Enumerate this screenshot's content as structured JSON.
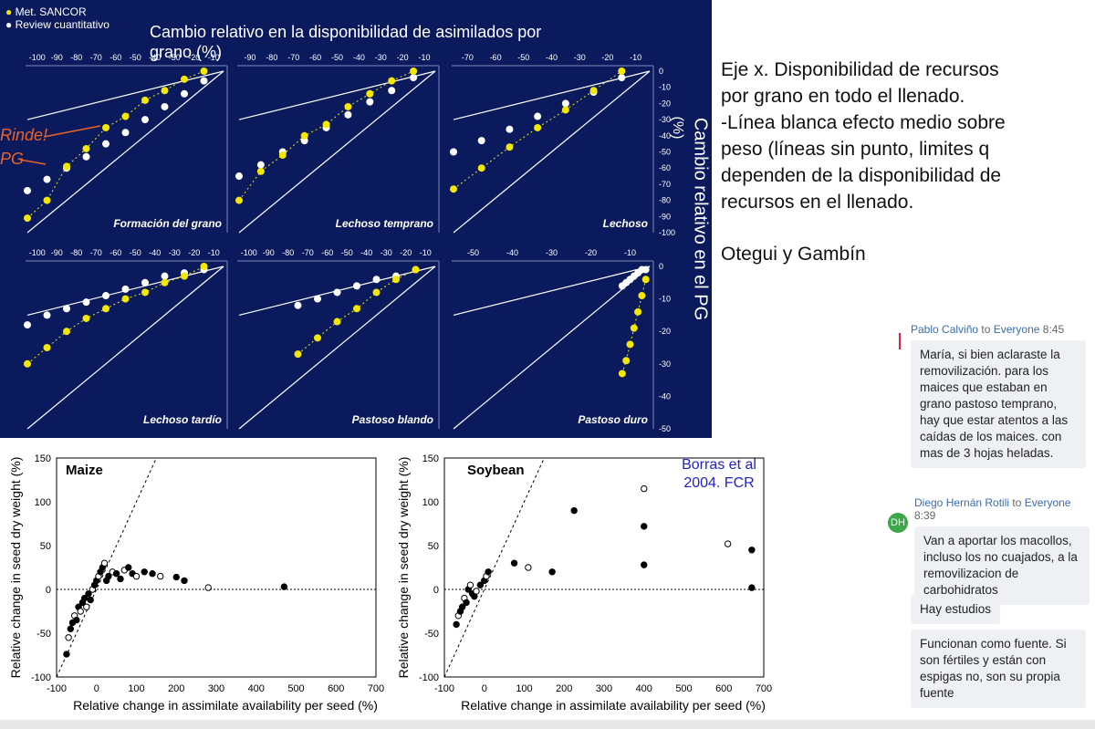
{
  "slide": {
    "legend": [
      "Met. SANCOR",
      "Review cuantitativo"
    ],
    "title": "Cambio relativo en la disponibilidad de asimilados por grano (%)",
    "right_axis": "Cambio relativo en el PG",
    "right_axis_unit": "(%)",
    "annotation_rinde": "Rinde!",
    "annotation_pg": "PG",
    "colors": {
      "background": "#0a1a5c",
      "sancor": "#f5e800",
      "review": "#ffffff",
      "annotation": "#e8642a"
    },
    "stage_labels": [
      "Formación del grano",
      "Lechoso temprano",
      "Lechoso",
      "Lechoso tardío",
      "Pastoso blando",
      "Pastoso duro"
    ],
    "top_x_ticks": [
      [
        "-100",
        "-90",
        "-80",
        "-70",
        "-60",
        "-50",
        "-40",
        "-30",
        "-20",
        "-10"
      ],
      [
        "-90",
        "-80",
        "-70",
        "-60",
        "-50",
        "-40",
        "-30",
        "-20",
        "-10"
      ],
      [
        "-70",
        "-60",
        "-50",
        "-40",
        "-30",
        "-20",
        "-10"
      ]
    ],
    "top_y_ticks": [
      "0",
      "-10",
      "-20",
      "-30",
      "-40",
      "-50",
      "-60",
      "-70",
      "-80",
      "-90",
      "-100"
    ],
    "bot_x_ticks": [
      [
        "-100",
        "-90",
        "-80",
        "-70",
        "-60",
        "-50",
        "-40",
        "-30",
        "-20",
        "-10"
      ],
      [
        "-100",
        "-90",
        "-80",
        "-70",
        "-60",
        "-50",
        "-40",
        "-30",
        "-20",
        "-10"
      ],
      [
        "-50",
        "-40",
        "-30",
        "-20",
        "-10"
      ]
    ],
    "bot_y_ticks": [
      "0",
      "-10",
      "-20",
      "-30",
      "-40",
      "-50"
    ]
  },
  "notes": {
    "text": "Eje x. Disponibilidad de recursos por grano en todo el llenado.\n-Línea blanca efecto medio sobre peso (líneas sin punto, limites q dependen de la disponibilidad de recursos en el llenado.",
    "authors": "Otegui y Gambín"
  },
  "chat": [
    {
      "sender": "Pablo Calviño",
      "to": "to",
      "audience": "Everyone",
      "time": "8:45",
      "text": "María, si bien aclaraste la removilización. para los maices que estaban en grano pastoso temprano, hay que estar atentos a las caídas de los maices. con mas de 3 hojas heladas."
    },
    {
      "sender": "Diego Hernán Rotili",
      "to": "to",
      "audience": "Everyone",
      "time": "8:39",
      "avatar": "DH",
      "text": "Van a aportar los macollos, incluso los no cuajados, a la removilizacion de carbohidratos"
    },
    {
      "text": "Hay estudios"
    },
    {
      "text": "Funcionan como fuente. Si son fértiles y están con espigas no, son su propia fuente"
    }
  ],
  "bottom": {
    "maize_title": "Maize",
    "soy_title": "Soybean",
    "ylabel": "Relative change in seed dry weight (%)",
    "xlabel": "Relative change in assimilate availability per seed (%)",
    "x_ticks": [
      "-100",
      "0",
      "100",
      "200",
      "300",
      "400",
      "500",
      "600",
      "700"
    ],
    "y_ticks": [
      "150",
      "100",
      "50",
      "0",
      "-50",
      "-100"
    ],
    "citation": "Borras et al 2004. FCR"
  },
  "chart_data": [
    {
      "type": "scatter",
      "title": "Formación del grano",
      "xlim": [
        -100,
        0
      ],
      "ylim": [
        -100,
        0
      ],
      "series": [
        {
          "name": "Met. SANCOR",
          "x": [
            -100,
            -90,
            -80,
            -70,
            -60,
            -50,
            -40,
            -30,
            -20,
            -10
          ],
          "y": [
            -91,
            -80,
            -59,
            -48,
            -35,
            -28,
            -18,
            -12,
            -5,
            0
          ]
        },
        {
          "name": "Review cuantitativo",
          "x": [
            -100,
            -90,
            -80,
            -70,
            -60,
            -50,
            -40,
            -30,
            -20,
            -10
          ],
          "y": [
            -74,
            -67,
            -60,
            -53,
            -45,
            -38,
            -30,
            -22,
            -14,
            -6
          ]
        }
      ]
    },
    {
      "type": "scatter",
      "title": "Lechoso temprano",
      "xlim": [
        -90,
        0
      ],
      "ylim": [
        -100,
        0
      ],
      "series": [
        {
          "name": "Met. SANCOR",
          "x": [
            -90,
            -80,
            -70,
            -60,
            -50,
            -40,
            -30,
            -20,
            -10
          ],
          "y": [
            -80,
            -62,
            -52,
            -40,
            -33,
            -22,
            -14,
            -6,
            0
          ]
        },
        {
          "name": "Review cuantitativo",
          "x": [
            -90,
            -80,
            -70,
            -60,
            -50,
            -40,
            -30,
            -20,
            -10
          ],
          "y": [
            -65,
            -58,
            -50,
            -43,
            -35,
            -27,
            -19,
            -12,
            -4
          ]
        }
      ]
    },
    {
      "type": "scatter",
      "title": "Lechoso",
      "xlim": [
        -70,
        0
      ],
      "ylim": [
        -100,
        0
      ],
      "series": [
        {
          "name": "Met. SANCOR",
          "x": [
            -70,
            -60,
            -50,
            -40,
            -30,
            -20,
            -10
          ],
          "y": [
            -73,
            -60,
            -47,
            -35,
            -24,
            -12,
            0
          ]
        },
        {
          "name": "Review cuantitativo",
          "x": [
            -70,
            -60,
            -50,
            -40,
            -30,
            -20,
            -10
          ],
          "y": [
            -50,
            -43,
            -36,
            -28,
            -20,
            -13,
            -4
          ]
        }
      ]
    },
    {
      "type": "scatter",
      "title": "Lechoso tardío",
      "xlim": [
        -100,
        0
      ],
      "ylim": [
        -50,
        0
      ],
      "series": [
        {
          "name": "Met. SANCOR",
          "x": [
            -100,
            -90,
            -80,
            -70,
            -60,
            -50,
            -40,
            -30,
            -20,
            -10
          ],
          "y": [
            -30,
            -25,
            -20,
            -16,
            -13,
            -10,
            -8,
            -5,
            -3,
            0
          ]
        },
        {
          "name": "Review cuantitativo",
          "x": [
            -100,
            -90,
            -80,
            -70,
            -60,
            -50,
            -40,
            -30,
            -20,
            -10
          ],
          "y": [
            -18,
            -15,
            -13,
            -11,
            -9,
            -7,
            -5,
            -3,
            -2,
            -1
          ]
        }
      ]
    },
    {
      "type": "scatter",
      "title": "Pastoso blando",
      "xlim": [
        -100,
        0
      ],
      "ylim": [
        -50,
        0
      ],
      "series": [
        {
          "name": "Met. SANCOR",
          "x": [
            -70,
            -60,
            -50,
            -40,
            -30,
            -20,
            -10
          ],
          "y": [
            -27,
            -22,
            -17,
            -13,
            -8,
            -4,
            -1
          ]
        },
        {
          "name": "Review cuantitativo",
          "x": [
            -70,
            -60,
            -50,
            -40,
            -30,
            -20,
            -10
          ],
          "y": [
            -12,
            -10,
            -8,
            -6,
            -4,
            -3,
            -1
          ]
        }
      ]
    },
    {
      "type": "scatter",
      "title": "Pastoso duro",
      "xlim": [
        -50,
        0
      ],
      "ylim": [
        -50,
        0
      ],
      "series": [
        {
          "name": "Met. SANCOR",
          "x": [
            -7,
            -6,
            -5,
            -4,
            -3,
            -2,
            -1
          ],
          "y": [
            -33,
            -29,
            -24,
            -19,
            -14,
            -9,
            -4
          ]
        },
        {
          "name": "Review cuantitativo",
          "x": [
            -7,
            -6,
            -5,
            -4,
            -3,
            -2,
            -1
          ],
          "y": [
            -6,
            -5,
            -4,
            -3,
            -2,
            -1,
            -1
          ]
        }
      ]
    },
    {
      "type": "scatter",
      "title": "Maize",
      "xlim": [
        -100,
        700
      ],
      "ylim": [
        -100,
        150
      ],
      "xlabel": "Relative change in assimilate availability per seed (%)",
      "ylabel": "Relative change in seed dry weight (%)",
      "series": [
        {
          "name": "observations",
          "x": [
            -75,
            -70,
            -65,
            -60,
            -55,
            -50,
            -45,
            -40,
            -35,
            -30,
            -25,
            -20,
            -15,
            -10,
            -5,
            0,
            5,
            10,
            15,
            20,
            25,
            30,
            40,
            50,
            60,
            70,
            80,
            90,
            100,
            120,
            140,
            160,
            200,
            220,
            280,
            470
          ],
          "y": [
            -74,
            -55,
            -45,
            -38,
            -30,
            -35,
            -20,
            -25,
            -15,
            -10,
            -20,
            -5,
            -12,
            0,
            5,
            10,
            15,
            20,
            25,
            30,
            10,
            15,
            20,
            18,
            12,
            22,
            25,
            18,
            15,
            20,
            18,
            15,
            14,
            10,
            2,
            3
          ]
        }
      ]
    },
    {
      "type": "scatter",
      "title": "Soybean",
      "xlim": [
        -100,
        700
      ],
      "ylim": [
        -100,
        150
      ],
      "xlabel": "Relative change in assimilate availability per seed (%)",
      "ylabel": "Relative change in seed dry weight (%)",
      "series": [
        {
          "name": "observations",
          "x": [
            -70,
            -65,
            -60,
            -55,
            -50,
            -45,
            -40,
            -35,
            -30,
            -25,
            -20,
            -10,
            0,
            5,
            10,
            75,
            110,
            170,
            225,
            400,
            400,
            400,
            610,
            670,
            670
          ],
          "y": [
            -40,
            -30,
            -25,
            -20,
            -10,
            -15,
            0,
            5,
            -5,
            -8,
            -2,
            5,
            10,
            15,
            20,
            30,
            25,
            20,
            90,
            115,
            72,
            28,
            52,
            45,
            2
          ]
        }
      ]
    }
  ]
}
